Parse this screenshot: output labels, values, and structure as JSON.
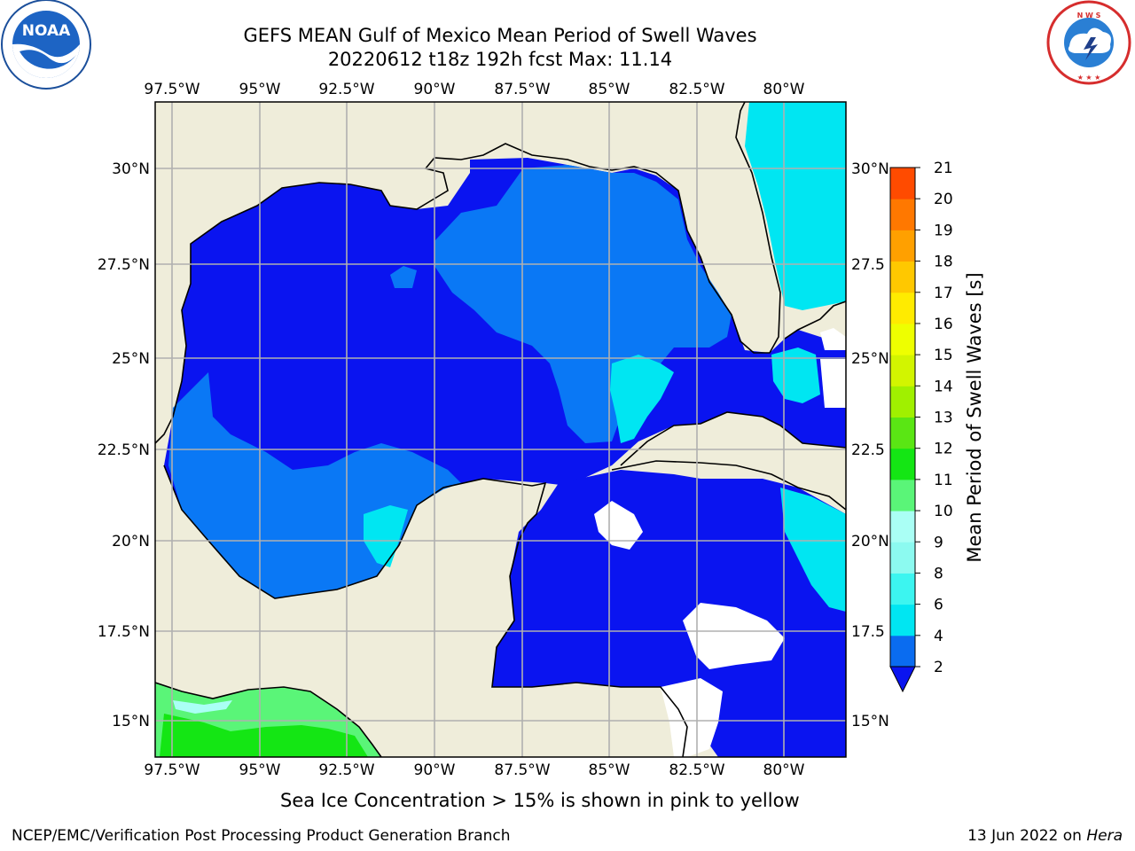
{
  "header": {
    "title_line1": "GEFS MEAN Gulf of Mexico Mean Period of Swell Waves",
    "title_line2": "20220612 t18z 192h fcst   Max: 11.14"
  },
  "logos": {
    "left": {
      "icon": "noaa-logo-icon",
      "text": "NOAA"
    },
    "right": {
      "icon": "national-weather-service-logo-icon",
      "text": "NATIONAL WEATHER SERVICE"
    }
  },
  "map": {
    "lon_labels": [
      "97.5°W",
      "95°W",
      "92.5°W",
      "90°W",
      "87.5°W",
      "85°W",
      "82.5°W",
      "80°W"
    ],
    "lat_labels": [
      "30°N",
      "27.5°N",
      "25°N",
      "22.5°N",
      "20°N",
      "17.5°N",
      "15°N"
    ],
    "lat_labels_right": [
      "30°N",
      "27.5",
      "25°N",
      "22.5",
      "20°N",
      "17.5",
      "15°N"
    ],
    "land_color": "#efedda",
    "grid_color": "#b0b0b0"
  },
  "colorbar": {
    "label": "Mean Period of Swell Waves [s]",
    "ticks": [
      "2",
      "4",
      "6",
      "8",
      "9",
      "10",
      "11",
      "12",
      "13",
      "14",
      "15",
      "16",
      "17",
      "18",
      "19",
      "20",
      "21"
    ],
    "colors": [
      "#0a6cf0",
      "#00e6f2",
      "#3cf5f0",
      "#8cfaf0",
      "#aafff5",
      "#5af578",
      "#14e614",
      "#5ae614",
      "#a0f000",
      "#d2f500",
      "#eeff00",
      "#ffeb00",
      "#ffc800",
      "#ffa000",
      "#ff7800",
      "#ff4b00",
      "#ff1e00",
      "#ff0000"
    ],
    "under_color": "#0a14f0"
  },
  "note": "Sea Ice Concentration > 15% is shown in pink to yellow",
  "footer": {
    "left": "NCEP/EMC/Verification Post Processing Product Generation Branch",
    "date": "13 Jun 2022 on",
    "machine": "Hera"
  }
}
